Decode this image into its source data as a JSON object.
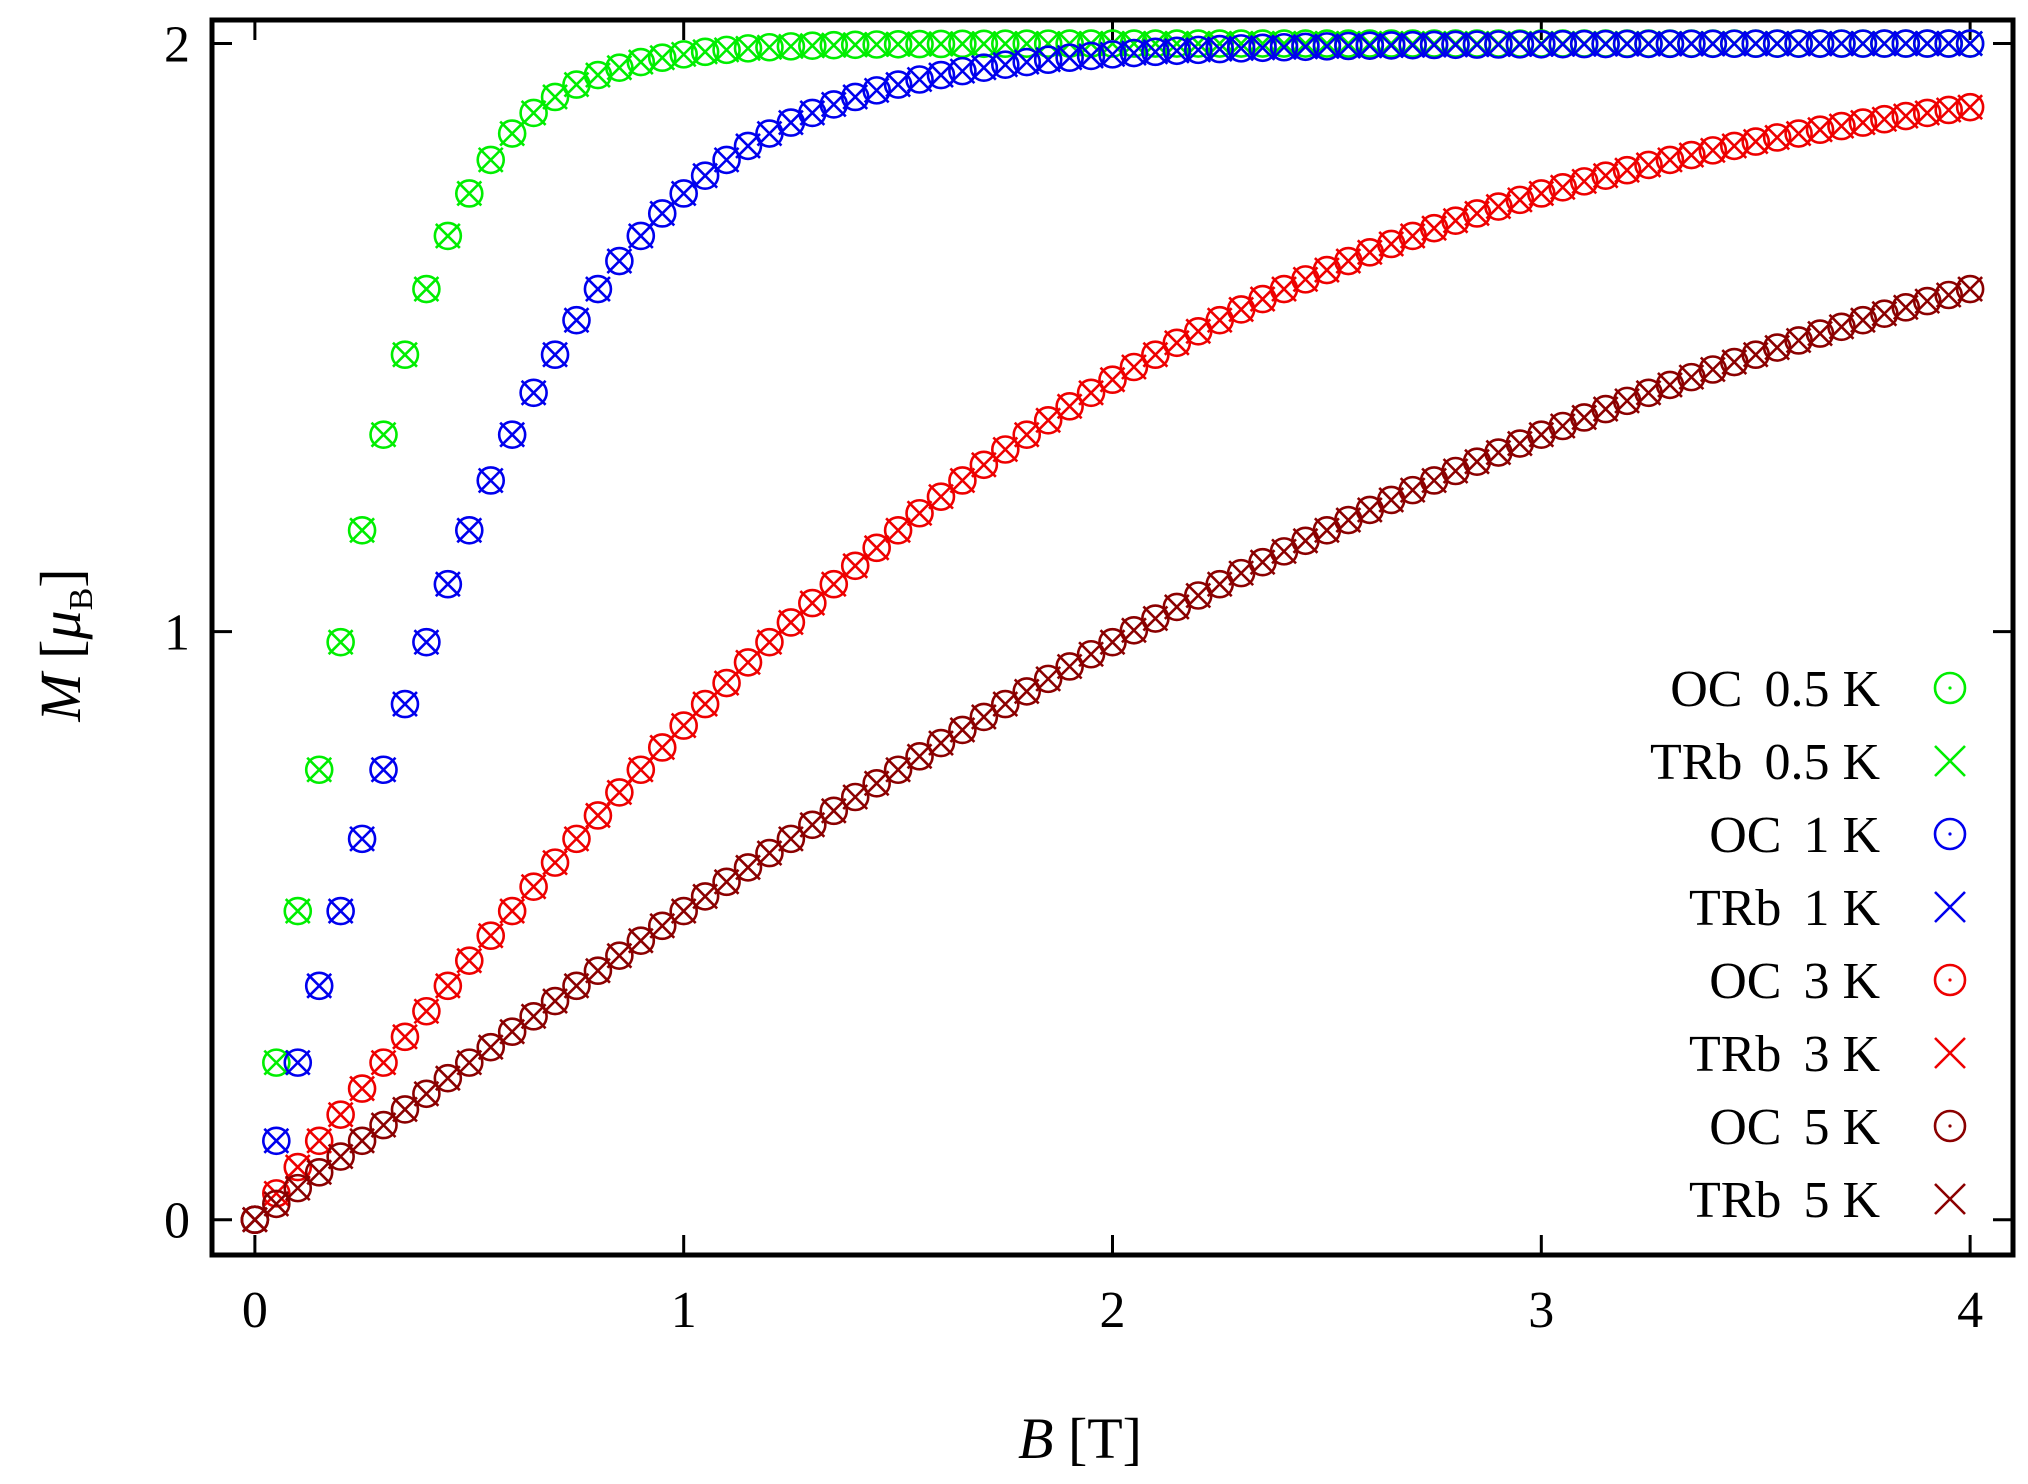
{
  "chart_data": {
    "type": "scatter",
    "title": "",
    "xlabel": {
      "symbol": "B",
      "unit": "[T]"
    },
    "ylabel": {
      "symbol": "M",
      "open": "[",
      "mu": "μ",
      "sub": "B",
      "close": "]"
    },
    "xlim": [
      -0.1,
      4.1
    ],
    "ylim": [
      -0.06,
      2.04
    ],
    "x_ticks": [
      0,
      1,
      2,
      3,
      4
    ],
    "x_tick_labels": [
      "0",
      "1",
      "2",
      "3",
      "4"
    ],
    "y_ticks": [
      0,
      1,
      2
    ],
    "y_tick_labels": [
      "0",
      "1",
      "2"
    ],
    "grid": false,
    "legend_position": "lower-right",
    "x_spacing": 0.05,
    "x_start": 0,
    "x_end": 4,
    "model": "M = 2 tanh(g * muB * B / (k * T)), sampled at each B",
    "model_factor": 1.3435,
    "temperatures": [
      {
        "T": 0.5,
        "color": "#00ee00"
      },
      {
        "T": 1,
        "color": "#0000ee"
      },
      {
        "T": 3,
        "color": "#ee0000"
      },
      {
        "T": 5,
        "color": "#8b0000"
      }
    ],
    "series": [
      {
        "name": "OC 0.5 K",
        "method": "OC",
        "temp": "0.5 K",
        "marker": "circle",
        "color": "#00ee00"
      },
      {
        "name": "TRb 0.5 K",
        "method": "TRb",
        "temp": "0.5 K",
        "marker": "cross",
        "color": "#00ee00"
      },
      {
        "name": "OC 1 K",
        "method": "OC",
        "temp": "1 K",
        "marker": "circle",
        "color": "#0000ee"
      },
      {
        "name": "TRb 1 K",
        "method": "TRb",
        "temp": "1 K",
        "marker": "cross",
        "color": "#0000ee"
      },
      {
        "name": "OC 3 K",
        "method": "OC",
        "temp": "3 K",
        "marker": "circle",
        "color": "#ee0000"
      },
      {
        "name": "TRb 3 K",
        "method": "TRb",
        "temp": "3 K",
        "marker": "cross",
        "color": "#ee0000"
      },
      {
        "name": "OC 5 K",
        "method": "OC",
        "temp": "5 K",
        "marker": "circle",
        "color": "#8b0000"
      },
      {
        "name": "TRb 5 K",
        "method": "TRb",
        "temp": "5 K",
        "marker": "cross",
        "color": "#8b0000"
      }
    ]
  }
}
